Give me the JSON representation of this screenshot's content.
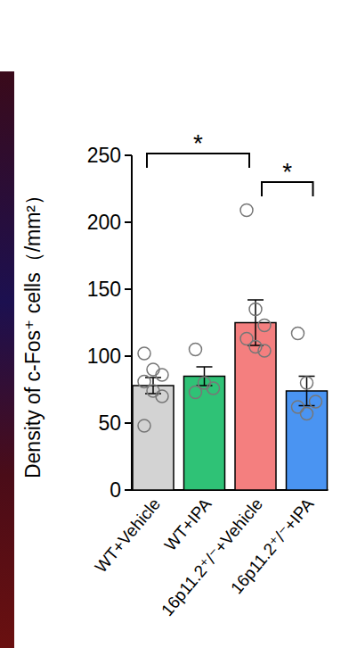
{
  "chart_data": {
    "type": "bar",
    "y_label": "Density of c-Fos⁺ cells（/mm²）",
    "categories": [
      "WT+Vehicle",
      "WT+IPA",
      "16p11.2⁺/⁻+Vehicle",
      "16p11.2⁺/⁻+IPA"
    ],
    "values": [
      78,
      85,
      125,
      74
    ],
    "errors": [
      6,
      7,
      17,
      11
    ],
    "points": [
      [
        102,
        90,
        86,
        81,
        74,
        70,
        48
      ],
      [
        105,
        80,
        76,
        73
      ],
      [
        209,
        135,
        123,
        113,
        107,
        104
      ],
      [
        117,
        80,
        66,
        62,
        57
      ]
    ],
    "colors": [
      "#d3d3d3",
      "#2fc276",
      "#f47f7f",
      "#4a94f2"
    ],
    "ylim": [
      0,
      250
    ],
    "yticks": [
      0,
      50,
      100,
      150,
      200,
      250
    ],
    "annotations": [
      {
        "from": 0,
        "to": 2,
        "label": "*"
      },
      {
        "from": 2,
        "to": 3,
        "label": "*"
      }
    ]
  }
}
